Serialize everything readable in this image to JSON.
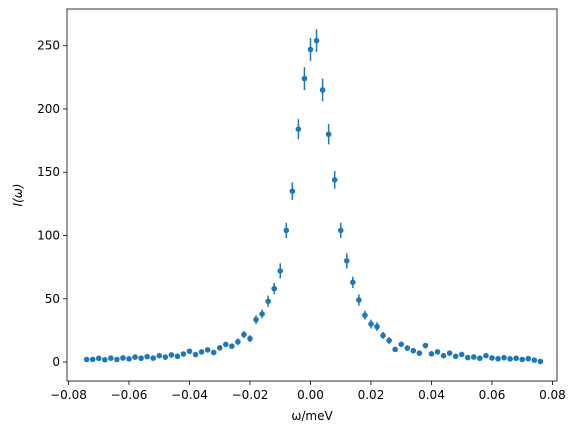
{
  "chart_data": {
    "type": "errorbar",
    "xlabel": "ω/meV",
    "ylabel": "I(ω)",
    "color": "#1f77b4",
    "xlim": [
      -0.0805,
      0.0815
    ],
    "ylim": [
      -15,
      279
    ],
    "xticks": [
      {
        "value": -0.08,
        "label": "−0.08"
      },
      {
        "value": -0.06,
        "label": "−0.06"
      },
      {
        "value": -0.04,
        "label": "−0.04"
      },
      {
        "value": -0.02,
        "label": "−0.02"
      },
      {
        "value": 0,
        "label": "0.00"
      },
      {
        "value": 0.02,
        "label": "0.02"
      },
      {
        "value": 0.04,
        "label": "0.04"
      },
      {
        "value": 0.06,
        "label": "0.06"
      },
      {
        "value": 0.08,
        "label": "0.08"
      }
    ],
    "yticks": [
      0,
      50,
      100,
      150,
      200,
      250
    ],
    "x": [
      -0.074,
      -0.072,
      -0.07,
      -0.068,
      -0.066,
      -0.064,
      -0.062,
      -0.06,
      -0.058,
      -0.056,
      -0.054,
      -0.052,
      -0.05,
      -0.048,
      -0.046,
      -0.044,
      -0.042,
      -0.04,
      -0.038,
      -0.036,
      -0.034,
      -0.032,
      -0.03,
      -0.028,
      -0.026,
      -0.024,
      -0.022,
      -0.02,
      -0.018,
      -0.016,
      -0.014,
      -0.012,
      -0.01,
      -0.008,
      -0.006,
      -0.004,
      -0.002,
      0,
      0.002,
      0.004,
      0.006,
      0.008,
      0.01,
      0.012,
      0.014,
      0.016,
      0.018,
      0.02,
      0.022,
      0.024,
      0.026,
      0.028,
      0.03,
      0.032,
      0.034,
      0.036,
      0.038,
      0.04,
      0.042,
      0.044,
      0.046,
      0.048,
      0.05,
      0.052,
      0.054,
      0.056,
      0.058,
      0.06,
      0.062,
      0.064,
      0.066,
      0.068,
      0.07,
      0.072,
      0.074,
      0.076
    ],
    "values": [
      2.0,
      2.1,
      2.9,
      1.8,
      3.1,
      2.0,
      3.2,
      2.5,
      3.9,
      3.0,
      4.2,
      3.1,
      5.0,
      3.9,
      5.6,
      4.5,
      6.3,
      8.5,
      5.9,
      8.0,
      9.6,
      7.5,
      11.2,
      13.9,
      12.5,
      16.0,
      21.7,
      18.5,
      33.5,
      38.0,
      48.0,
      58.0,
      72.0,
      104,
      135,
      184,
      224,
      247,
      254,
      215,
      180,
      144,
      104,
      80,
      63,
      49,
      37,
      30,
      28,
      21,
      17,
      10,
      14,
      11,
      9,
      7,
      13,
      6.5,
      8,
      5,
      7,
      4.5,
      6,
      3.5,
      4,
      3,
      5,
      3.2,
      2.6,
      3.4,
      2.5,
      3,
      2,
      2.6,
      1.5,
      0.5
    ],
    "errors": [
      1,
      1,
      1,
      1,
      1,
      1,
      1,
      1,
      1,
      1,
      1.5,
      1,
      1.5,
      1,
      1.5,
      1.5,
      1.5,
      1.5,
      1.5,
      1.5,
      2,
      1.5,
      2,
      2,
      2,
      2.7,
      2.7,
      2.7,
      3.5,
      3.5,
      4.5,
      4.5,
      6,
      6,
      7,
      8,
      9,
      9,
      9,
      9,
      8,
      7,
      6,
      6,
      4.5,
      4.5,
      3.5,
      3.5,
      3.5,
      2.7,
      2.7,
      2,
      2,
      2,
      2,
      1.5,
      2,
      1.5,
      1.5,
      1.5,
      1.5,
      1.5,
      1.5,
      1,
      1,
      1,
      1.5,
      1,
      1,
      1,
      1,
      1,
      1,
      1,
      1,
      1
    ]
  }
}
